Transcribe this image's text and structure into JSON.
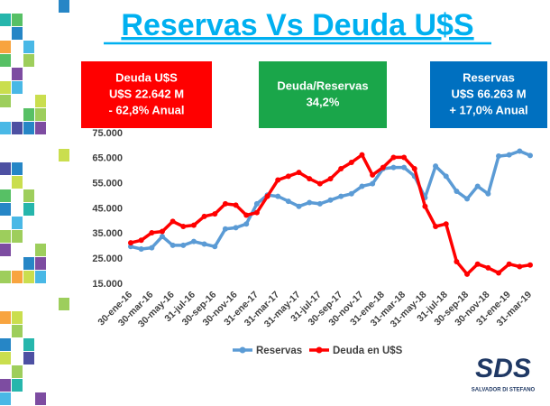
{
  "chart_data": {
    "type": "line",
    "title": "Reservas Vs Deuda U$S",
    "annotations": [
      {
        "color": "#ff0000",
        "lines": [
          "Deuda U$S",
          "U$S 22.642 M",
          "- 62,8% Anual"
        ]
      },
      {
        "color": "#1aa64a",
        "lines": [
          "Deuda/Reservas",
          "34,2%"
        ]
      },
      {
        "color": "#0070c0",
        "lines": [
          "Reservas",
          "U$S 66.263 M",
          "+ 17,0% Anual"
        ]
      }
    ],
    "categories": [
      "30-ene-16",
      null,
      "30-mar-16",
      null,
      "30-may-16",
      null,
      "31-jul-16",
      null,
      "30-sep-16",
      null,
      "30-nov-16",
      null,
      "31-ene-17",
      null,
      "31-mar-17",
      null,
      "31-may-17",
      null,
      "31-jul-17",
      null,
      "30-sep-17",
      null,
      "30-nov-17",
      null,
      "31-ene-18",
      null,
      "31-mar-18",
      null,
      "31-may-18",
      null,
      "31-jul-18",
      null,
      "30-sep-18",
      null,
      "30-nov-18",
      null,
      "31-ene-19",
      null,
      "31-mar-19"
    ],
    "series": [
      {
        "name": "Reservas",
        "color": "#5b9bd5",
        "values": [
          30000,
          29000,
          29500,
          34000,
          30500,
          30500,
          32000,
          31000,
          30000,
          37000,
          37500,
          39000,
          47000,
          50500,
          50000,
          48000,
          46000,
          47500,
          47000,
          48500,
          50000,
          51000,
          54000,
          55000,
          61000,
          61500,
          61500,
          58000,
          49500,
          62000,
          58000,
          52000,
          49000,
          54000,
          51000,
          66000,
          66500,
          68000,
          66263
        ]
      },
      {
        "name": "Deuda en U$S",
        "color": "#ff0000",
        "values": [
          31500,
          32500,
          35500,
          36000,
          40000,
          38000,
          38500,
          42000,
          43000,
          47000,
          46500,
          42500,
          43500,
          50000,
          56500,
          58000,
          59500,
          57000,
          55000,
          57000,
          61000,
          63500,
          66500,
          58500,
          61500,
          65500,
          65500,
          61000,
          46000,
          38000,
          39000,
          24000,
          19000,
          23000,
          21500,
          19500,
          23000,
          22000,
          22642
        ]
      }
    ],
    "ylim": [
      15000,
      75000
    ],
    "yticks": [
      {
        "value": 15000,
        "label": "15.000"
      },
      {
        "value": 25000,
        "label": "25.000"
      },
      {
        "value": 35000,
        "label": "35.000"
      },
      {
        "value": 45000,
        "label": "45.000"
      },
      {
        "value": 55000,
        "label": "55.000"
      },
      {
        "value": 65000,
        "label": "65.000"
      },
      {
        "value": 75000,
        "label": "75.000"
      }
    ],
    "grid": false,
    "legend": "bottom"
  },
  "logo": {
    "title": "SDS",
    "subtitle": "SALVADOR DI STEFANO"
  }
}
